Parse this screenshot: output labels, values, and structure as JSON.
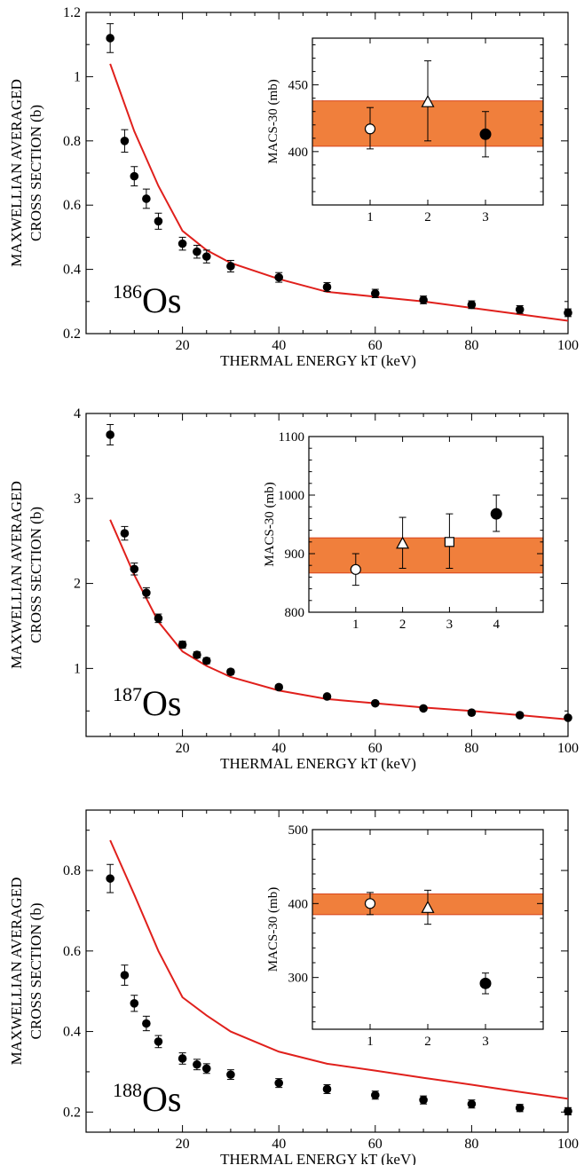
{
  "chart_data": [
    {
      "type": "scatter",
      "isotope": {
        "mass": "186",
        "symbol": "Os"
      },
      "xlabel": "THERMAL ENERGY  kT (keV)",
      "ylabel": [
        "MAXWELLIAN AVERAGED",
        "CROSS SECTION (b)"
      ],
      "xlim": [
        0,
        100
      ],
      "ylim": [
        0.2,
        1.2
      ],
      "xticks": [
        20,
        40,
        60,
        80,
        100
      ],
      "yticks": [
        0.2,
        0.4,
        0.6,
        0.8,
        1.0,
        1.2
      ],
      "ytick_labels": [
        "0.2",
        "0.4",
        "0.6",
        "0.8",
        "1",
        "1.2"
      ],
      "colors": {
        "model": "#e0201c",
        "points": "#000000",
        "band": "#f07f3c"
      },
      "points": {
        "x": [
          5,
          8,
          10,
          12.5,
          15,
          20,
          23,
          25,
          30,
          40,
          50,
          60,
          70,
          80,
          90,
          100
        ],
        "y": [
          1.12,
          0.8,
          0.69,
          0.62,
          0.55,
          0.48,
          0.455,
          0.44,
          0.41,
          0.375,
          0.345,
          0.325,
          0.305,
          0.29,
          0.275,
          0.265
        ],
        "err": [
          0.045,
          0.035,
          0.03,
          0.03,
          0.025,
          0.02,
          0.02,
          0.02,
          0.018,
          0.015,
          0.014,
          0.013,
          0.012,
          0.012,
          0.012,
          0.012
        ]
      },
      "model": {
        "x": [
          5,
          10,
          15,
          20,
          25,
          30,
          40,
          50,
          60,
          70,
          80,
          90,
          100
        ],
        "y": [
          1.04,
          0.83,
          0.66,
          0.52,
          0.46,
          0.42,
          0.37,
          0.33,
          0.315,
          0.3,
          0.28,
          0.26,
          0.24
        ]
      },
      "inset": {
        "ylabel": "MACS-30 (mb)",
        "xlim": [
          0,
          4
        ],
        "ylim": [
          360,
          485
        ],
        "xticks": [
          1,
          2,
          3
        ],
        "yticks": [
          400,
          450
        ],
        "band": [
          404,
          438
        ],
        "measurements": [
          {
            "x": 1,
            "y": 417,
            "err_low": 15,
            "err_high": 16,
            "marker": "circle-open"
          },
          {
            "x": 2,
            "y": 437,
            "err_low": 29,
            "err_high": 31,
            "marker": "triangle-open"
          },
          {
            "x": 3,
            "y": 413,
            "err_low": 17,
            "err_high": 17,
            "marker": "circle-filled"
          }
        ]
      }
    },
    {
      "type": "scatter",
      "isotope": {
        "mass": "187",
        "symbol": "Os"
      },
      "xlabel": "THERMAL ENERGY  kT (keV)",
      "ylabel": [
        "MAXWELLIAN AVERAGED",
        "CROSS SECTION (b)"
      ],
      "xlim": [
        0,
        100
      ],
      "ylim": [
        0.2,
        4.0
      ],
      "xticks": [
        20,
        40,
        60,
        80,
        100
      ],
      "yticks": [
        1,
        2,
        3,
        4
      ],
      "ytick_labels": [
        "1",
        "2",
        "3",
        "4"
      ],
      "colors": {
        "model": "#e0201c",
        "points": "#000000",
        "band": "#f07f3c"
      },
      "points": {
        "x": [
          5,
          8,
          10,
          12.5,
          15,
          20,
          23,
          25,
          30,
          40,
          50,
          60,
          70,
          80,
          90,
          100
        ],
        "y": [
          3.75,
          2.59,
          2.17,
          1.89,
          1.59,
          1.28,
          1.16,
          1.09,
          0.96,
          0.78,
          0.67,
          0.59,
          0.53,
          0.48,
          0.45,
          0.42
        ],
        "err": [
          0.12,
          0.08,
          0.07,
          0.06,
          0.05,
          0.04,
          0.035,
          0.035,
          0.03,
          0.025,
          0.02,
          0.02,
          0.02,
          0.02,
          0.02,
          0.02
        ]
      },
      "model": {
        "x": [
          5,
          10,
          15,
          20,
          25,
          30,
          40,
          50,
          60,
          70,
          80,
          90,
          100
        ],
        "y": [
          2.75,
          2.1,
          1.55,
          1.2,
          1.03,
          0.9,
          0.74,
          0.64,
          0.59,
          0.54,
          0.5,
          0.45,
          0.4
        ]
      },
      "inset": {
        "ylabel": "MACS-30 (mb)",
        "xlim": [
          0,
          5
        ],
        "ylim": [
          800,
          1100
        ],
        "xticks": [
          1,
          2,
          3,
          4
        ],
        "yticks": [
          800,
          900,
          1000,
          1100
        ],
        "band": [
          867,
          927
        ],
        "measurements": [
          {
            "x": 1,
            "y": 873,
            "err_low": 27,
            "err_high": 27,
            "marker": "circle-open"
          },
          {
            "x": 2,
            "y": 917,
            "err_low": 42,
            "err_high": 45,
            "marker": "triangle-open"
          },
          {
            "x": 3,
            "y": 920,
            "err_low": 45,
            "err_high": 48,
            "marker": "square-open"
          },
          {
            "x": 4,
            "y": 968,
            "err_low": 30,
            "err_high": 32,
            "marker": "circle-filled"
          }
        ]
      }
    },
    {
      "type": "scatter",
      "isotope": {
        "mass": "188",
        "symbol": "Os"
      },
      "xlabel": "THERMAL ENERGY  kT (keV)",
      "ylabel": [
        "MAXWELLIAN AVERAGED",
        "CROSS SECTION (b)"
      ],
      "xlim": [
        0,
        100
      ],
      "ylim": [
        0.15,
        0.95
      ],
      "xticks": [
        20,
        40,
        60,
        80,
        100
      ],
      "yticks": [
        0.2,
        0.4,
        0.6,
        0.8
      ],
      "ytick_labels": [
        "0.2",
        "0.4",
        "0.6",
        "0.8"
      ],
      "colors": {
        "model": "#e0201c",
        "points": "#000000",
        "band": "#f07f3c"
      },
      "points": {
        "x": [
          5,
          8,
          10,
          12.5,
          15,
          20,
          23,
          25,
          30,
          40,
          50,
          60,
          70,
          80,
          90,
          100
        ],
        "y": [
          0.78,
          0.54,
          0.47,
          0.42,
          0.375,
          0.333,
          0.318,
          0.308,
          0.293,
          0.272,
          0.257,
          0.242,
          0.23,
          0.22,
          0.21,
          0.202
        ],
        "err": [
          0.035,
          0.025,
          0.02,
          0.018,
          0.015,
          0.014,
          0.013,
          0.012,
          0.012,
          0.011,
          0.011,
          0.01,
          0.01,
          0.01,
          0.009,
          0.009
        ]
      },
      "model": {
        "x": [
          5,
          10,
          15,
          20,
          25,
          30,
          40,
          50,
          60,
          70,
          80,
          90,
          100
        ],
        "y": [
          0.875,
          0.74,
          0.6,
          0.485,
          0.44,
          0.4,
          0.35,
          0.32,
          0.303,
          0.285,
          0.268,
          0.25,
          0.233
        ]
      },
      "inset": {
        "ylabel": "MACS-30 (mb)",
        "xlim": [
          0,
          4
        ],
        "ylim": [
          230,
          500
        ],
        "xticks": [
          1,
          2,
          3
        ],
        "yticks": [
          300,
          400,
          500
        ],
        "band": [
          385,
          413
        ],
        "measurements": [
          {
            "x": 1,
            "y": 400,
            "err_low": 15,
            "err_high": 15,
            "marker": "circle-open"
          },
          {
            "x": 2,
            "y": 394,
            "err_low": 22,
            "err_high": 24,
            "marker": "triangle-open"
          },
          {
            "x": 3,
            "y": 292,
            "err_low": 14,
            "err_high": 14,
            "marker": "circle-filled"
          }
        ]
      }
    }
  ]
}
